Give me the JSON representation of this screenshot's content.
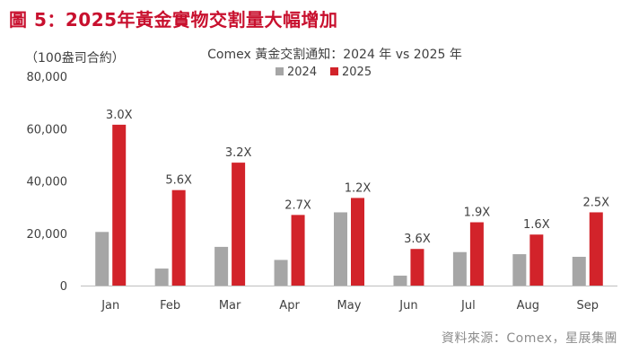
{
  "figure_title": "圖 5：2025年黃金實物交割量大幅增加",
  "source": "資料來源：Comex，星展集團",
  "colors": {
    "series_2024": "#a6a6a6",
    "series_2025": "#d2232a",
    "title": "#c8102e"
  },
  "chart_data": {
    "type": "bar",
    "title": "Comex 黃金交割通知：2024 年 vs 2025 年",
    "ylabel": "（100盎司合約）",
    "xlabel": "",
    "categories": [
      "Jan",
      "Feb",
      "Mar",
      "Apr",
      "May",
      "Jun",
      "Jul",
      "Aug",
      "Sep"
    ],
    "series": [
      {
        "name": "2024",
        "values": [
          20500,
          6500,
          14800,
          9800,
          28000,
          3800,
          12800,
          12000,
          11000
        ]
      },
      {
        "name": "2025",
        "values": [
          61500,
          36500,
          47000,
          27000,
          33500,
          14000,
          24200,
          19500,
          28000
        ]
      }
    ],
    "annotations": [
      "3.0X",
      "5.6X",
      "3.2X",
      "2.7X",
      "1.2X",
      "3.6X",
      "1.9X",
      "1.6X",
      "2.5X"
    ],
    "ylim": [
      0,
      80000
    ],
    "yticks": [
      "0",
      "20,000",
      "40,000",
      "60,000",
      "80,000"
    ],
    "ytick_values": [
      0,
      20000,
      40000,
      60000,
      80000
    ],
    "grid": false,
    "legend_position": "top-center"
  }
}
